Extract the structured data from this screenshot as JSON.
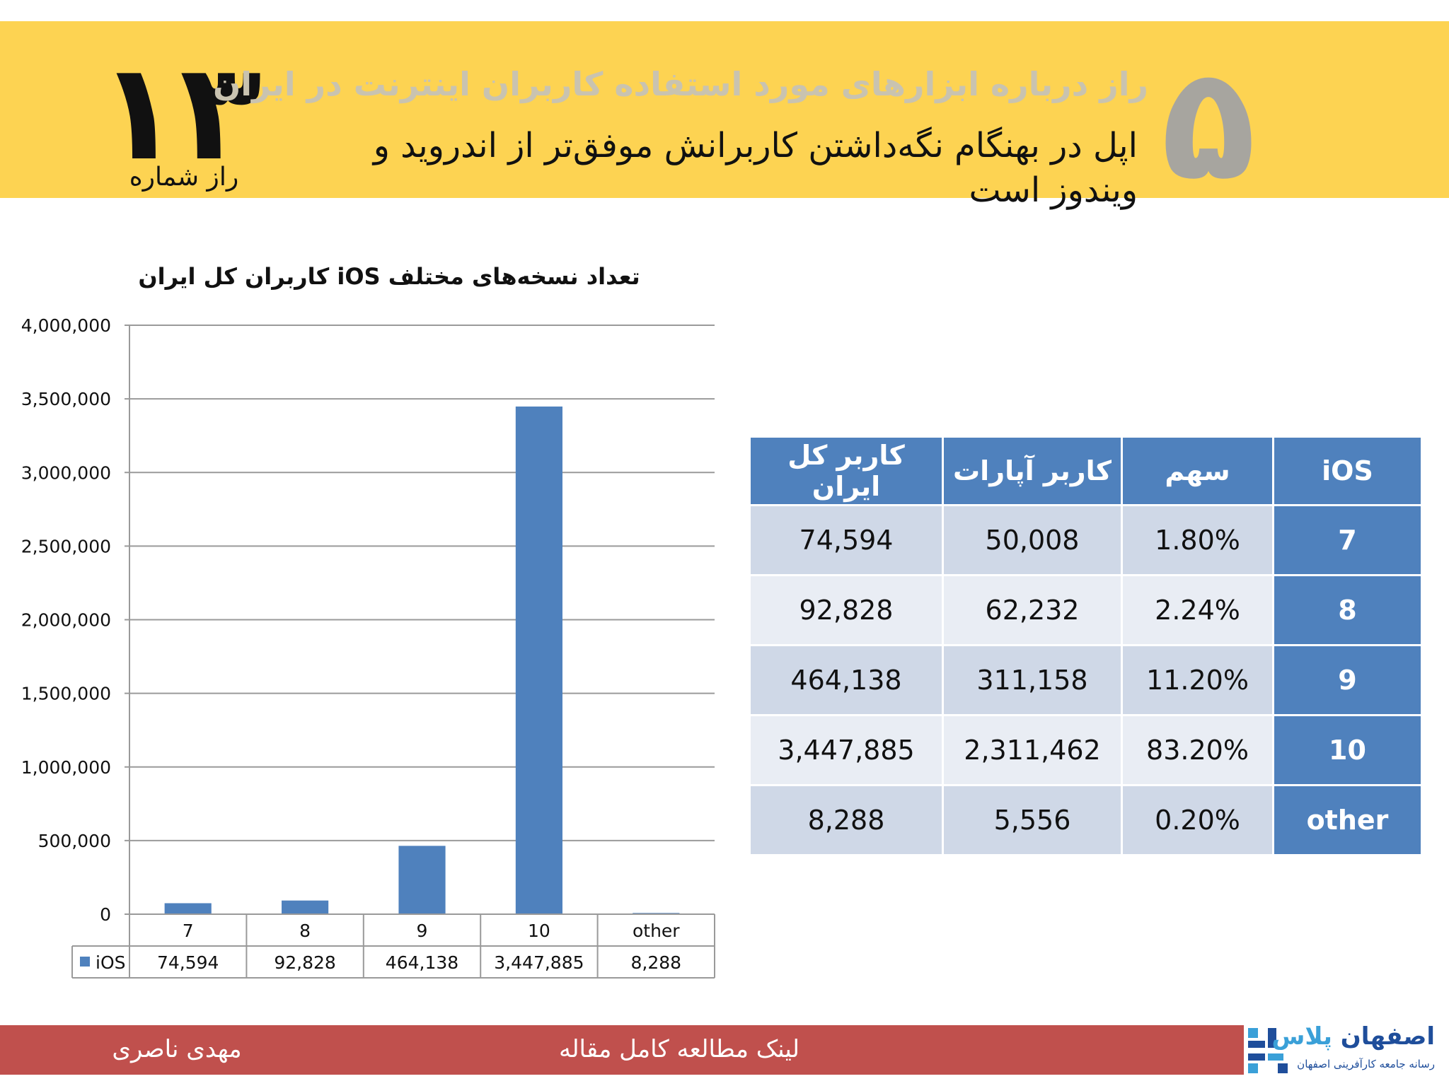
{
  "header": {
    "big_number": "۱۳",
    "secret_label": "راز شماره",
    "title": "راز درباره ابزارهای مورد استفاده کاربران اینترنت در ایران",
    "subtitle": "اپل در بهنگام نگه‌داشتن کاربرانش موفق‌تر از اندروید و ویندوز است",
    "secret_number": "۵"
  },
  "colors": {
    "header_bg": "#fdd352",
    "bar": "#4f81bd",
    "footer_bg": "#c0504d"
  },
  "chart_data": {
    "type": "bar",
    "title": "تعداد نسخه‌های مختلف iOS کاربران کل ایران",
    "categories": [
      "7",
      "8",
      "9",
      "10",
      "other"
    ],
    "series": [
      {
        "name": "iOS",
        "values": [
          74594,
          92828,
          464138,
          3447885,
          8288
        ]
      }
    ],
    "value_labels": [
      "74,594",
      "92,828",
      "464,138",
      "3,447,885",
      "8,288"
    ],
    "yticks": [
      "0",
      "500,000",
      "1,000,000",
      "1,500,000",
      "2,000,000",
      "2,500,000",
      "3,000,000",
      "3,500,000",
      "4,000,000"
    ],
    "ylim": [
      0,
      4000000
    ],
    "grid": true,
    "legend": "data-table-left"
  },
  "table": {
    "headers": [
      "iOS",
      "سهم",
      "کاربر آپارات",
      "کاربر کل ایران"
    ],
    "rows": [
      {
        "version": "7",
        "share": "1.80%",
        "aparat": "50,008",
        "total": "74,594"
      },
      {
        "version": "8",
        "share": "2.24%",
        "aparat": "62,232",
        "total": "92,828"
      },
      {
        "version": "9",
        "share": "11.20%",
        "aparat": "311,158",
        "total": "464,138"
      },
      {
        "version": "10",
        "share": "83.20%",
        "aparat": "2,311,462",
        "total": "3,447,885"
      },
      {
        "version": "other",
        "share": "0.20%",
        "aparat": "5,556",
        "total": "8,288"
      }
    ]
  },
  "footer": {
    "link": "لینک مطالعه کامل مقاله",
    "author": "مهدی ناصری"
  },
  "logo": {
    "name_part1": "اصفهان",
    "name_part2": "پلاس",
    "tagline": "رسانه جامعه کارآفرینی اصفهان"
  }
}
